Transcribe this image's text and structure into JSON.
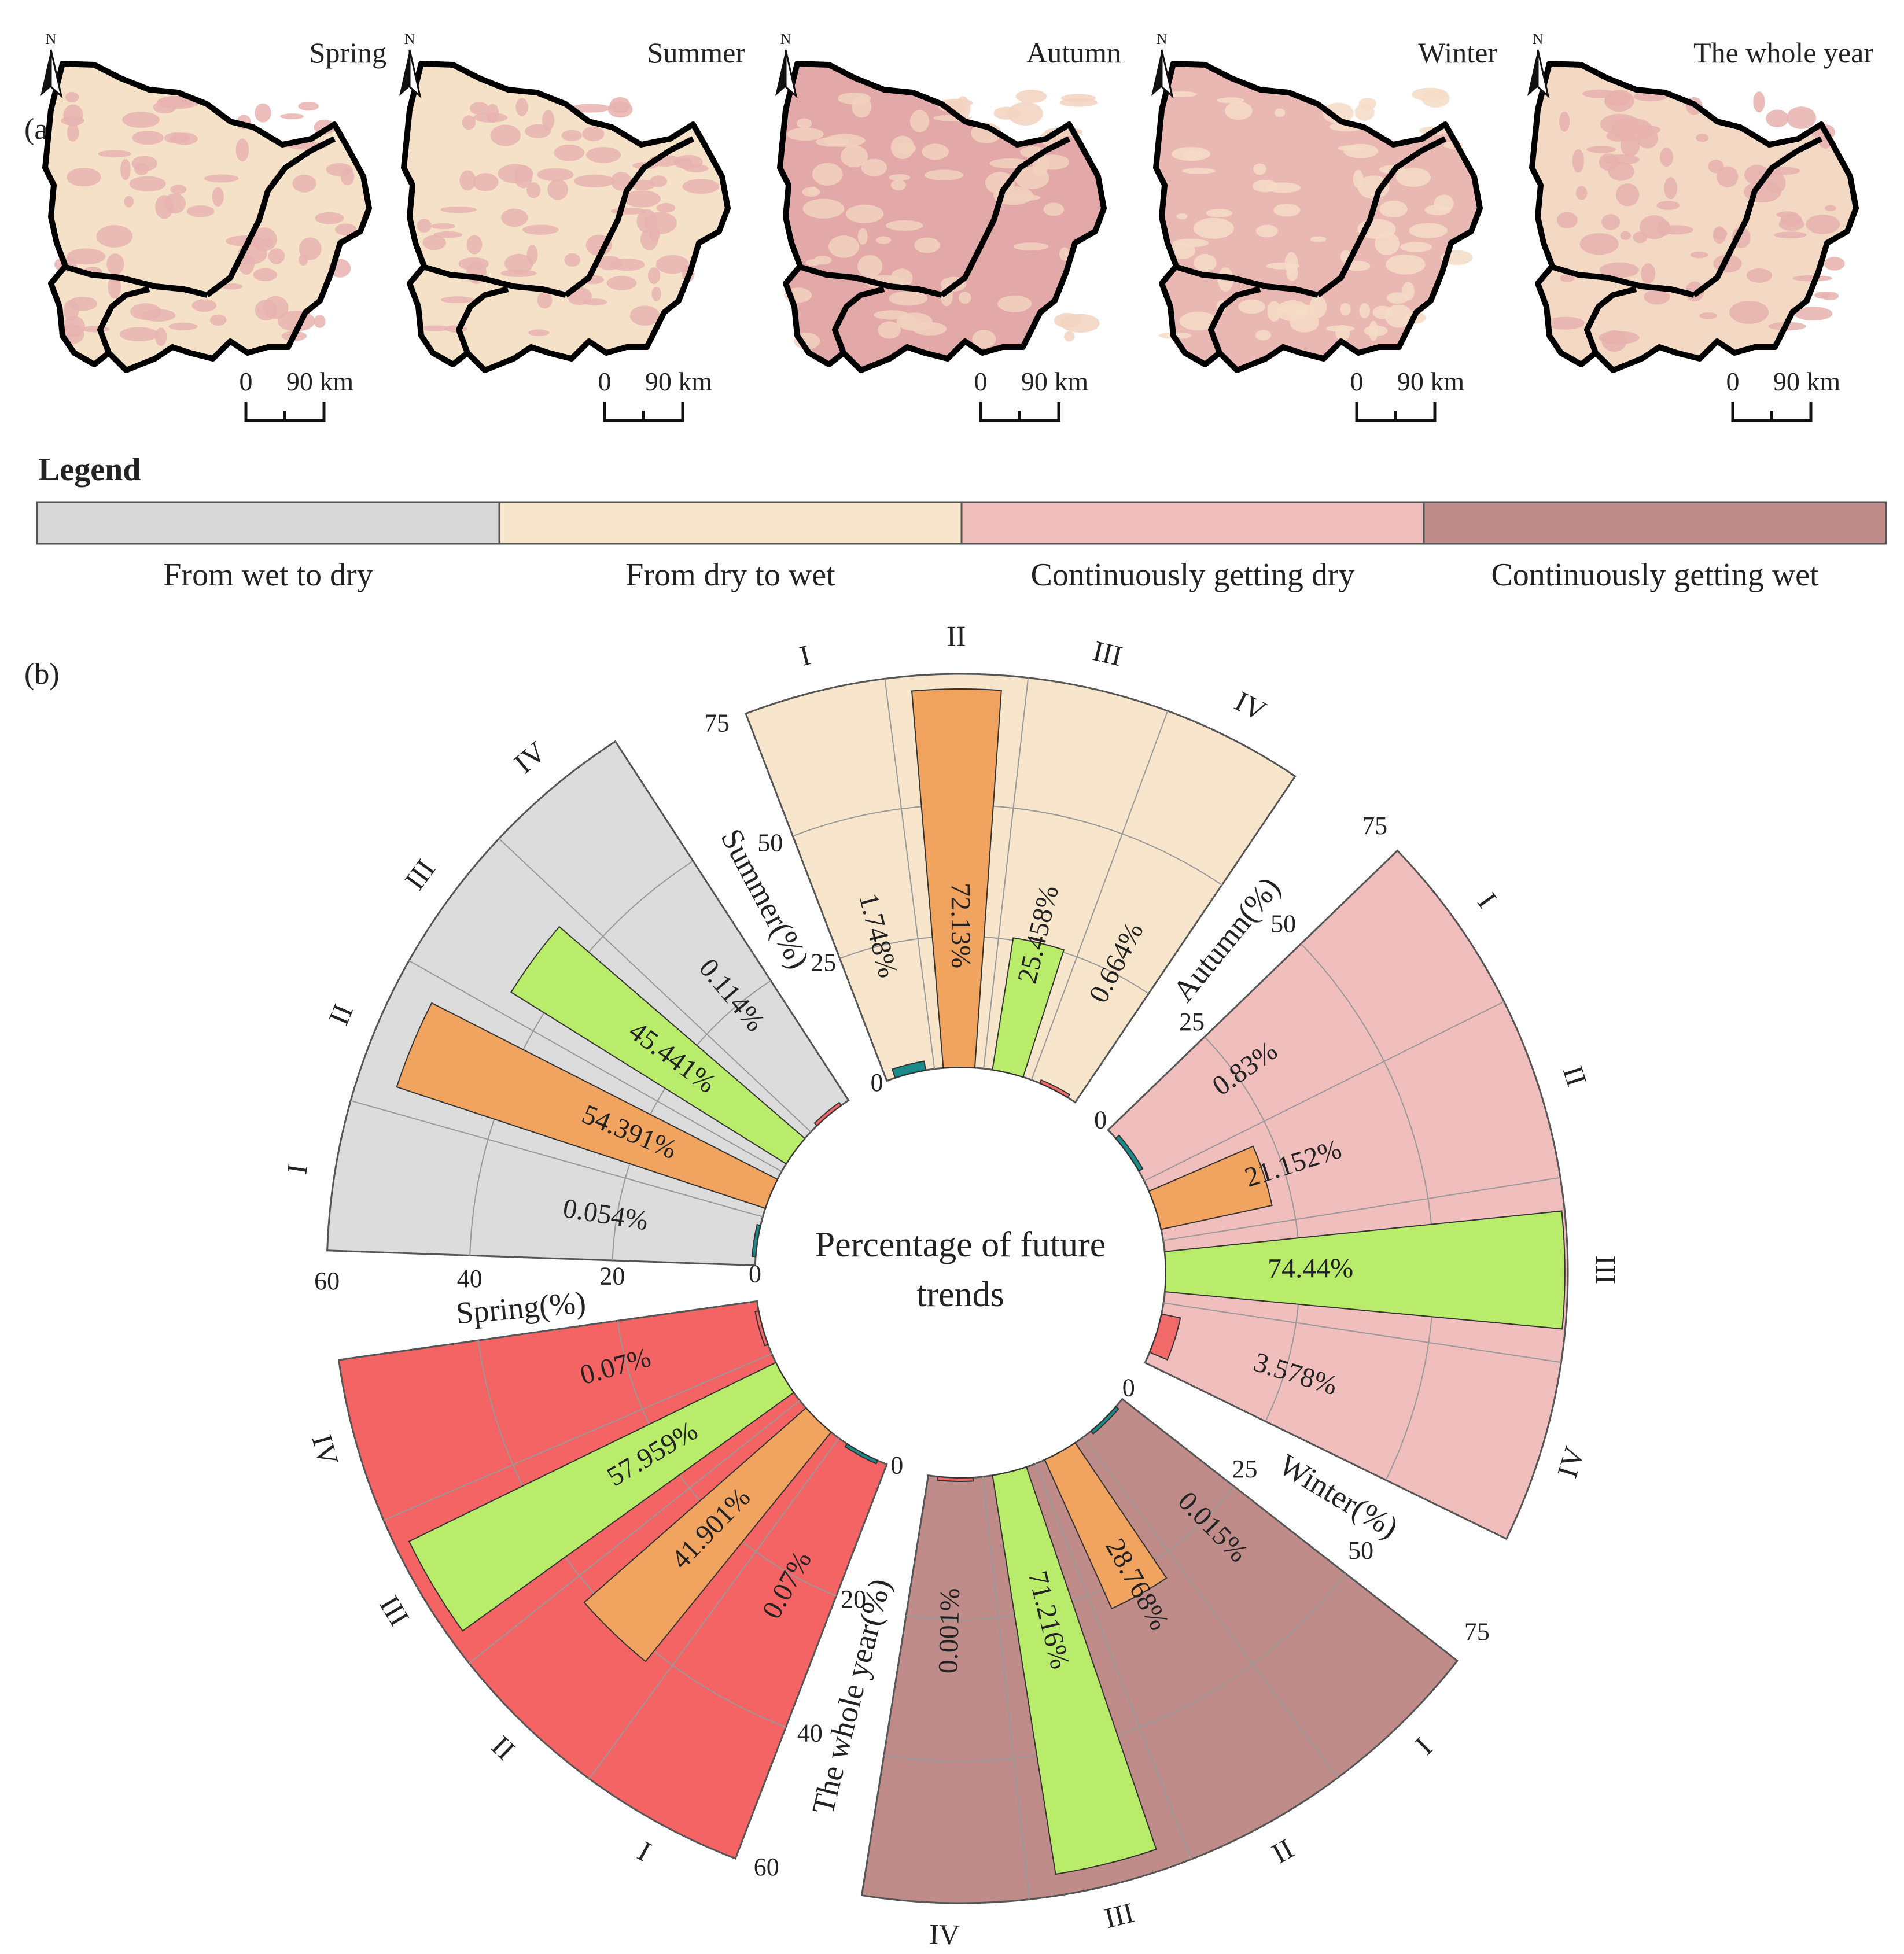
{
  "panel_a": {
    "label": "(a)",
    "maps": [
      {
        "season": "Spring",
        "north": "N",
        "scale_zero": "0",
        "scale_end": "90 km",
        "base": "#f5e1c8",
        "tint": "#e8b3b0"
      },
      {
        "season": "Summer",
        "north": "N",
        "scale_zero": "0",
        "scale_end": "90 km",
        "base": "#f5e1c8",
        "tint": "#e8b3b0"
      },
      {
        "season": "Autumn",
        "north": "N",
        "scale_zero": "0",
        "scale_end": "90 km",
        "base": "#e3a9a8",
        "tint": "#f2d2c0"
      },
      {
        "season": "Winter",
        "north": "N",
        "scale_zero": "0",
        "scale_end": "90 km",
        "base": "#eab8b3",
        "tint": "#f5dcc7"
      },
      {
        "season": "The whole year",
        "north": "N",
        "scale_zero": "0",
        "scale_end": "90 km",
        "base": "#f3d8c4",
        "tint": "#e6b1ae"
      }
    ]
  },
  "legend": {
    "title": "Legend",
    "items": [
      {
        "label": "From wet to dry",
        "color": "#d9d9d9"
      },
      {
        "label": "From dry to wet",
        "color": "#f8e6cc"
      },
      {
        "label": "Continuously getting dry",
        "color": "#efbdbc"
      },
      {
        "label": "Continuously getting wet",
        "color": "#bf8c89"
      }
    ]
  },
  "panel_b": {
    "label": "(b)",
    "center_title_line1": "Percentage of future trends",
    "center_title_line2": "trends"
  },
  "chart_data": {
    "type": "bar",
    "subtype": "circular grouped bar",
    "categories": [
      "I",
      "II",
      "III",
      "IV"
    ],
    "bar_colors": {
      "I": "#1a8a8a",
      "II": "#f0a460",
      "III": "#b9ec6a",
      "IV": "#f06a6a"
    },
    "series": [
      {
        "name": "Spring(%)",
        "background": "#dcdcdc",
        "ylim": [
          0,
          60
        ],
        "ticks": [
          "0",
          "20",
          "40",
          "60"
        ],
        "values": [
          0.054,
          54.391,
          45.441,
          0.114
        ],
        "labels": [
          "0.054%",
          "54.391%",
          "45.441%",
          "0.114%"
        ]
      },
      {
        "name": "Summer(%)",
        "background": "#f8e6cc",
        "ylim": [
          0,
          75
        ],
        "ticks": [
          "0",
          "25",
          "50",
          "75"
        ],
        "values": [
          1.748,
          72.13,
          25.458,
          0.664
        ],
        "labels": [
          "1.748%",
          "72.13%",
          "25.458%",
          "0.664%"
        ]
      },
      {
        "name": "Autumn(%)",
        "background": "#f0bebd",
        "ylim": [
          0,
          75
        ],
        "ticks": [
          "0",
          "25",
          "50",
          "75"
        ],
        "values": [
          0.83,
          21.152,
          74.44,
          3.578
        ],
        "labels": [
          "0.83%",
          "21.152%",
          "74.44%",
          "3.578%"
        ]
      },
      {
        "name": "Winter(%)",
        "background": "#bf8c89",
        "ylim": [
          0,
          75
        ],
        "ticks": [
          "0",
          "25",
          "50",
          "75"
        ],
        "values": [
          0.015,
          28.768,
          71.216,
          0.001
        ],
        "labels": [
          "0.015%",
          "28.768%",
          "71.216%",
          "0.001%"
        ]
      },
      {
        "name": "The whole year(%)",
        "background": "#f56464",
        "ylim": [
          0,
          60
        ],
        "ticks": [
          "0",
          "20",
          "40",
          "60"
        ],
        "values": [
          0.07,
          41.901,
          57.959,
          0.07
        ],
        "labels": [
          "0.07%",
          "41.901%",
          "57.959%",
          "0.07%"
        ]
      }
    ]
  }
}
